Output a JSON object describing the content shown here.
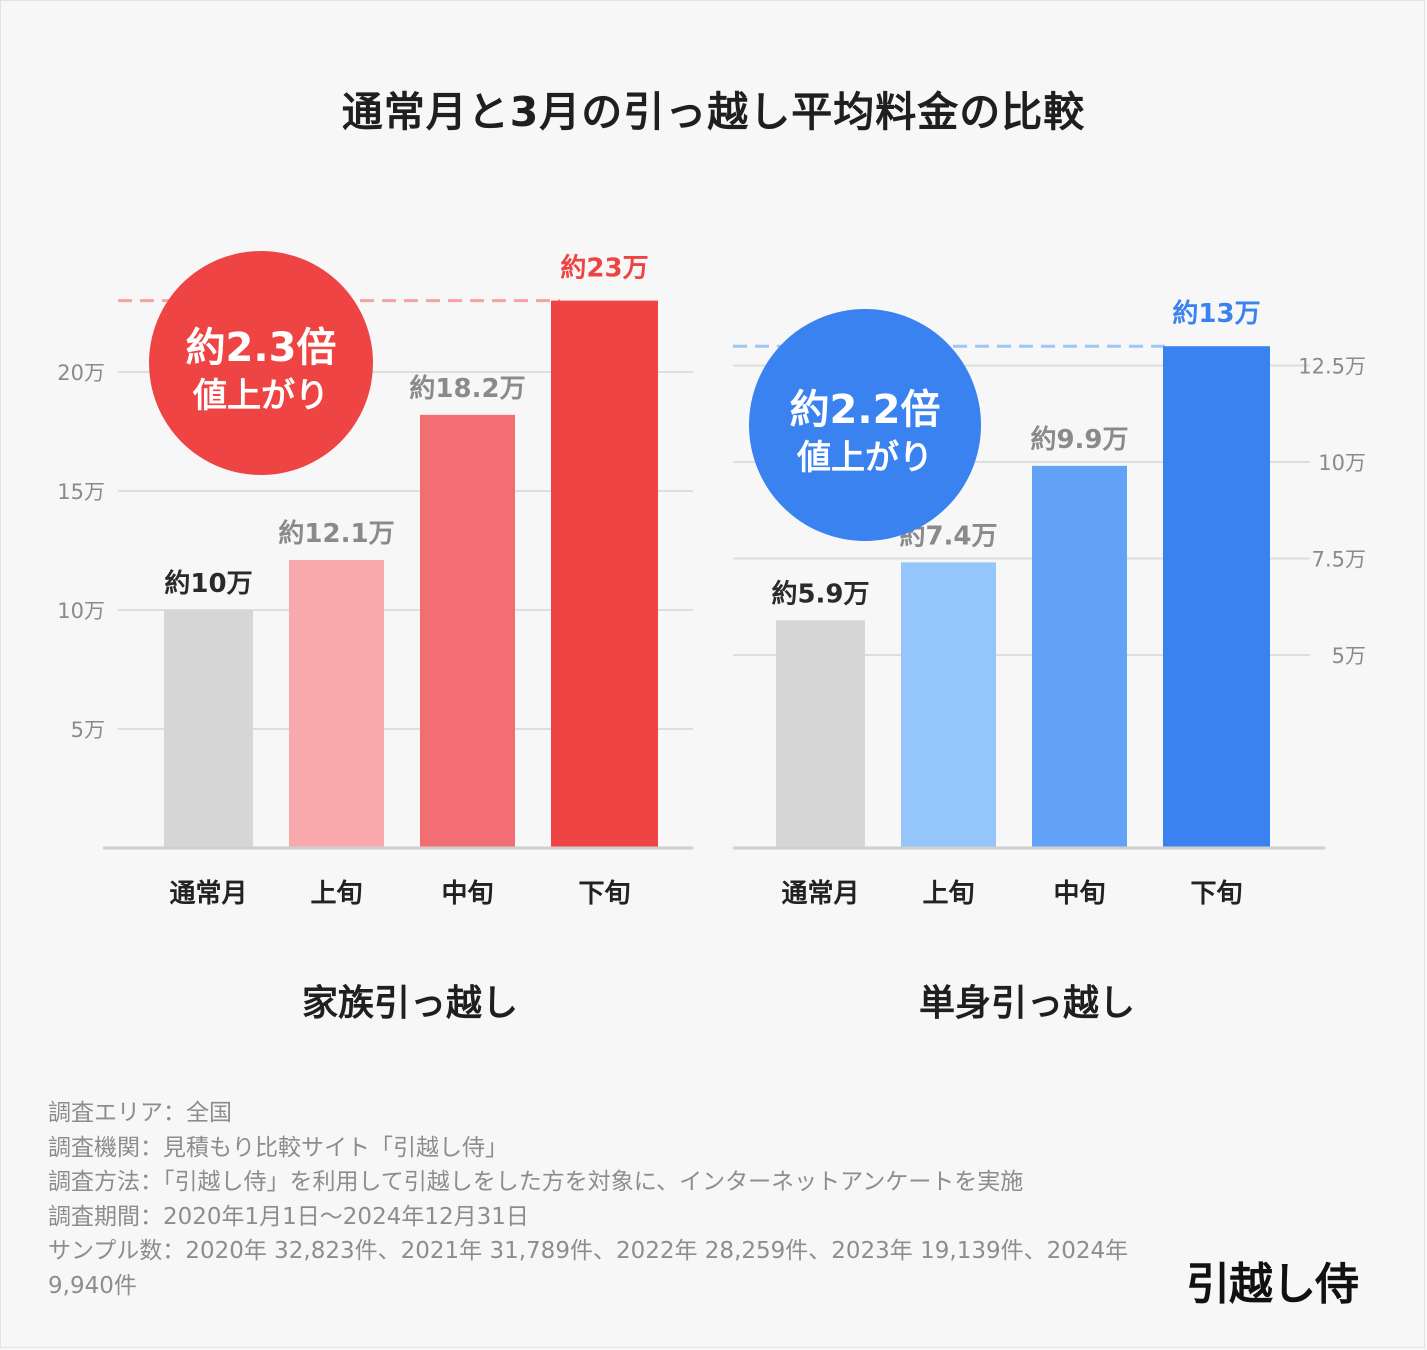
{
  "title": "通常月と3月の引っ越し平均料金の比較",
  "chart_data": [
    {
      "type": "bar",
      "title": "家族引っ越し",
      "categories": [
        "通常月",
        "上旬",
        "中旬",
        "下旬"
      ],
      "values": [
        10,
        12.1,
        18.2,
        23
      ],
      "value_labels": [
        "約10万",
        "約12.1万",
        "約18.2万",
        "約23万"
      ],
      "colors": [
        "#d6d6d6",
        "#f9a8ac",
        "#f26e72",
        "#ee4444"
      ],
      "label_colors": [
        "#2a2a2a",
        "#8a8a8a",
        "#8a8a8a",
        "#ee4444"
      ],
      "yticks": [
        5,
        10,
        15,
        20
      ],
      "ytick_labels": [
        "5万",
        "10万",
        "15万",
        "20万"
      ],
      "yaxis_side": "left",
      "ylim": [
        0,
        23
      ],
      "unit": "万円",
      "reference_line": 23,
      "reference_color": "#f4a3a3",
      "badge": {
        "line1": "約2.3倍",
        "line2": "値上がり",
        "color": "#ee4444"
      }
    },
    {
      "type": "bar",
      "title": "単身引っ越し",
      "categories": [
        "通常月",
        "上旬",
        "中旬",
        "下旬"
      ],
      "values": [
        5.9,
        7.4,
        9.9,
        13
      ],
      "value_labels": [
        "約5.9万",
        "約7.4万",
        "約9.9万",
        "約13万"
      ],
      "colors": [
        "#d6d6d6",
        "#94c6fb",
        "#62a3f7",
        "#3a82f0"
      ],
      "label_colors": [
        "#2a2a2a",
        "#8a8a8a",
        "#8a8a8a",
        "#3a82f0"
      ],
      "yticks": [
        5,
        7.5,
        10,
        12.5
      ],
      "ytick_labels": [
        "5万",
        "7.5万",
        "10万",
        "12.5万"
      ],
      "yaxis_side": "right",
      "ylim": [
        0,
        13
      ],
      "unit": "万円",
      "reference_line": 13,
      "reference_color": "#9cc8f5",
      "badge": {
        "line1": "約2.2倍",
        "line2": "値上がり",
        "color": "#3a82f0"
      }
    }
  ],
  "notes": [
    "調査エリア：全国",
    "調査機関：見積もり比較サイト「引越し侍」",
    "調査方法：「引越し侍」を利用して引越しをした方を対象に、インターネットアンケートを実施",
    "調査期間：2020年1月1日～2024年12月31日",
    "サンプル数：2020年 32,823件、2021年 31,789件、2022年 28,259件、2023年 19,139件、2024年 9,940件"
  ],
  "logo_text": "引越し侍"
}
